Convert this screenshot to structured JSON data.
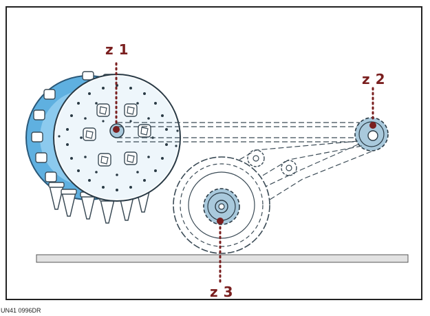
{
  "labels": {
    "z1": "z 1",
    "z2": "z 2",
    "z3": "z 3"
  },
  "doc_code": "UN41 0996DR",
  "colors": {
    "marker": "#7a1f1f",
    "rotor_fill": "#d8ecf7",
    "rotor_back": "#5fb0e0",
    "gear_fill": "#a9c9dc",
    "line": "#3a4a55",
    "ground": "#e2e2e2"
  },
  "icons": {
    "rotor": "rotor-disc-icon",
    "sprocket": "sprocket-icon",
    "wheel": "tyre-icon"
  }
}
